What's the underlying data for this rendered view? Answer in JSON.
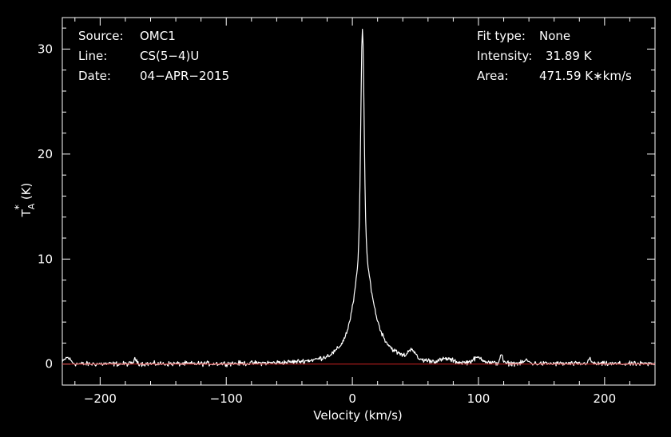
{
  "chart_data": {
    "type": "line",
    "title": "",
    "xlabel": "Velocity (km/s)",
    "ylabel": "T",
    "ylabel_sup": "*",
    "ylabel_sub": "A",
    "ylabel_unit": "(K)",
    "xlim": [
      -230,
      240
    ],
    "ylim": [
      -2,
      33
    ],
    "x_ticks": [
      -200,
      -100,
      0,
      100,
      200
    ],
    "y_ticks": [
      0,
      10,
      20,
      30
    ],
    "x_tick_labels": [
      "−200",
      "−100",
      "0",
      "100",
      "200"
    ],
    "y_tick_labels": [
      "0",
      "10",
      "20",
      "30"
    ],
    "grid": false,
    "colors": {
      "background": "#000000",
      "foreground": "#ffffff",
      "spectrum": "#ffffff",
      "baseline": "#cc2222"
    },
    "baseline_value": 0,
    "peak": {
      "x": 8,
      "y": 31.89
    },
    "features": [
      {
        "x": -226,
        "y": 0.6,
        "w": 2.5
      },
      {
        "x": -172,
        "y": 0.4,
        "w": 1.5
      },
      {
        "x": 47,
        "y": 0.9,
        "w": 2.5
      },
      {
        "x": 75,
        "y": 0.3,
        "w": 4
      },
      {
        "x": 100,
        "y": 0.5,
        "w": 4
      },
      {
        "x": 118,
        "y": 0.9,
        "w": 1.0
      },
      {
        "x": 138,
        "y": 0.3,
        "w": 2
      },
      {
        "x": 188,
        "y": 0.4,
        "w": 1.5
      }
    ],
    "info_left": [
      {
        "label": "Source:",
        "value": "OMC1"
      },
      {
        "label": "Line:",
        "value": "CS(5−4)U"
      },
      {
        "label": "Date:",
        "value": "04−APR−2015"
      }
    ],
    "info_right": [
      {
        "label": "Fit type:",
        "value": "None"
      },
      {
        "label": "Intensity:",
        "value": "31.89 K"
      },
      {
        "label": "Area:",
        "value": "471.59 K∗km/s"
      }
    ]
  }
}
